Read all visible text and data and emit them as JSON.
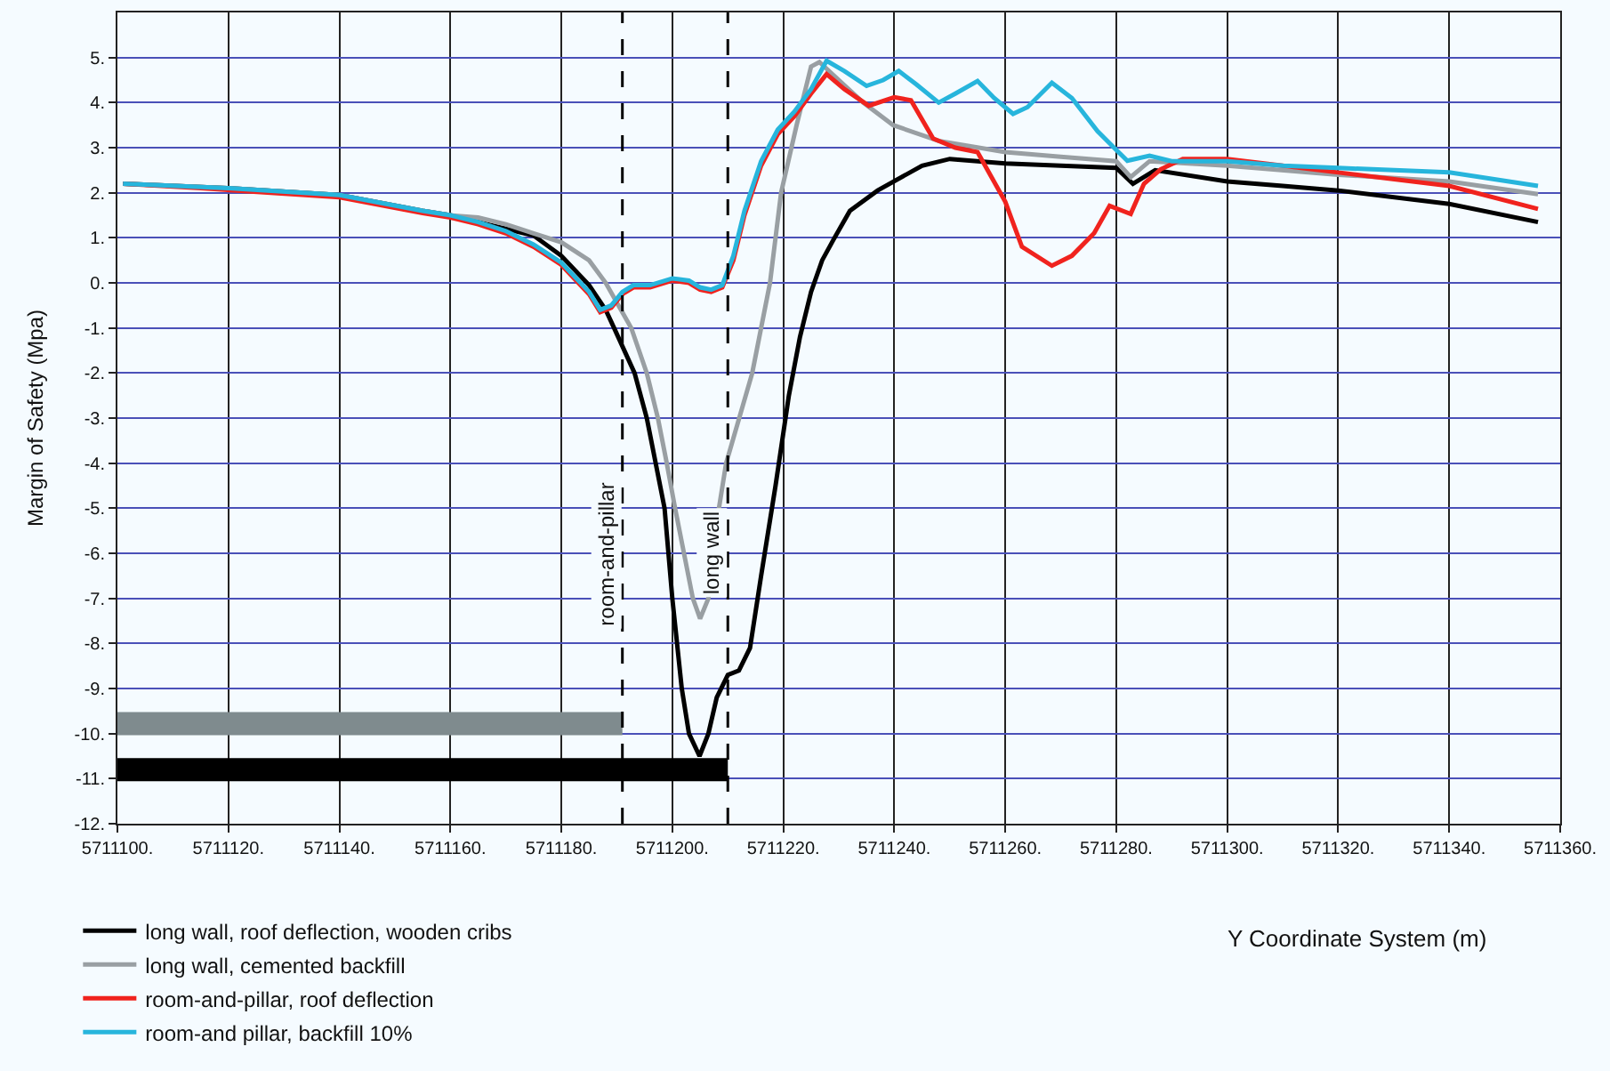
{
  "chart_data": {
    "type": "line",
    "xlabel": "Y Coordinate System (m)",
    "ylabel": "Margin of Safety (Mpa)",
    "xlim": [
      5711100,
      5711360
    ],
    "ylim": [
      -12,
      6
    ],
    "xticks": [
      {
        "value": 5711100,
        "label": "5711100."
      },
      {
        "value": 5711120,
        "label": "5711120."
      },
      {
        "value": 5711140,
        "label": "5711140."
      },
      {
        "value": 5711160,
        "label": "5711160."
      },
      {
        "value": 5711180,
        "label": "5711180."
      },
      {
        "value": 5711200,
        "label": "5711200."
      },
      {
        "value": 5711220,
        "label": "5711220."
      },
      {
        "value": 5711240,
        "label": "5711240."
      },
      {
        "value": 5711260,
        "label": "5711260."
      },
      {
        "value": 5711280,
        "label": "5711280."
      },
      {
        "value": 5711300,
        "label": "5711300."
      },
      {
        "value": 5711320,
        "label": "5711320."
      },
      {
        "value": 5711340,
        "label": "5711340."
      },
      {
        "value": 5711360,
        "label": "5711360."
      }
    ],
    "yticks": [
      {
        "value": 5,
        "label": "5."
      },
      {
        "value": 4,
        "label": "4."
      },
      {
        "value": 3,
        "label": "3."
      },
      {
        "value": 2,
        "label": "2."
      },
      {
        "value": 1,
        "label": "1."
      },
      {
        "value": 0,
        "label": "0."
      },
      {
        "value": -1,
        "label": "-1."
      },
      {
        "value": -2,
        "label": "-2."
      },
      {
        "value": -3,
        "label": "-3."
      },
      {
        "value": -4,
        "label": "-4."
      },
      {
        "value": -5,
        "label": "-5."
      },
      {
        "value": -6,
        "label": "-6."
      },
      {
        "value": -7,
        "label": "-7."
      },
      {
        "value": -8,
        "label": "-8."
      },
      {
        "value": -9,
        "label": "-9."
      },
      {
        "value": -10,
        "label": "-10."
      },
      {
        "value": -11,
        "label": "-11."
      },
      {
        "value": -12,
        "label": "-12."
      }
    ],
    "grid": true,
    "legend": "bottom left",
    "marker": "none",
    "line_style": "solid",
    "ref_lines": [
      {
        "axis": "x",
        "value": 5711191,
        "label": "room-and-pillar",
        "color": "#000000",
        "line_style": "dashed"
      },
      {
        "axis": "x",
        "value": 5711210,
        "label": "long wall",
        "color": "#000000",
        "line_style": "dashed"
      }
    ],
    "series": [
      {
        "name": "long wall, roof deflection, wooden cribs",
        "color": "#000000",
        "x": [
          5711101,
          5711120,
          5711140,
          5711155,
          5711160,
          5711165,
          5711170,
          5711175,
          5711180,
          5711185,
          5711188,
          5711189.5,
          5711193.2,
          5711195.4,
          5711197,
          5711198.6,
          5711200,
          5711201.7,
          5711203,
          5711204.9,
          5711206.5,
          5711208,
          5711210,
          5711212,
          5711214,
          5711216,
          5711218.6,
          5711221,
          5711223,
          5711225,
          5711227,
          5711229,
          5711232,
          5711237,
          5711245,
          5711250,
          5711260,
          5711270,
          5711280,
          5711283,
          5711287,
          5711300,
          5711310,
          5711320,
          5711340,
          5711356
        ],
        "values": [
          2.2,
          2.1,
          1.95,
          1.6,
          1.5,
          1.35,
          1.2,
          1.05,
          0.6,
          -0.05,
          -0.6,
          -1,
          -2,
          -3,
          -4,
          -5,
          -7,
          -9,
          -10,
          -10.5,
          -10,
          -9.2,
          -8.7,
          -8.6,
          -8.1,
          -6.5,
          -4.5,
          -2.5,
          -1.2,
          -0.2,
          0.5,
          0.95,
          1.6,
          2.05,
          2.6,
          2.75,
          2.65,
          2.6,
          2.55,
          2.2,
          2.5,
          2.25,
          2.15,
          2.05,
          1.75,
          1.35
        ]
      },
      {
        "name": "long wall, cemented backfill",
        "color": "#999fa3",
        "x": [
          5711101,
          5711120,
          5711140,
          5711155,
          5711160,
          5711165,
          5711170,
          5711175,
          5711180,
          5711185,
          5711188,
          5711192.6,
          5711195.4,
          5711197.4,
          5711199,
          5711200.5,
          5711203.7,
          5711205,
          5711206.5,
          5711208.4,
          5711209.7,
          5711214.4,
          5711217.6,
          5711219.6,
          5711222.4,
          5711225,
          5711226.5,
          5711230,
          5711234.4,
          5711239.8,
          5711248,
          5711260,
          5711270,
          5711280,
          5711282.6,
          5711286,
          5711300,
          5711320,
          5711340,
          5711356
        ],
        "values": [
          2.2,
          2.1,
          1.95,
          1.6,
          1.5,
          1.45,
          1.3,
          1.1,
          0.9,
          0.5,
          0,
          -1,
          -2,
          -3,
          -4,
          -5,
          -7,
          -7.45,
          -7,
          -5,
          -4,
          -2,
          0,
          2,
          3.5,
          4.8,
          4.9,
          4.5,
          4,
          3.5,
          3.15,
          2.9,
          2.8,
          2.7,
          2.35,
          2.7,
          2.6,
          2.4,
          2.25,
          1.97
        ]
      },
      {
        "name": "room-and-pillar, roof deflection",
        "color": "#f0231e",
        "x": [
          5711101,
          5711115,
          5711140,
          5711155,
          5711160,
          5711165,
          5711170,
          5711175,
          5711180,
          5711185,
          5711187,
          5711189,
          5711191,
          5711193,
          5711196,
          5711200,
          5711203,
          5711205,
          5711207,
          5711209,
          5711211,
          5711213,
          5711216,
          5711219,
          5711222,
          5711225,
          5711227.8,
          5711231,
          5711235.4,
          5711240,
          5711243,
          5711247,
          5711251,
          5711255,
          5711260,
          5711263,
          5711268.4,
          5711272,
          5711276,
          5711278.8,
          5711282.6,
          5711285,
          5711288,
          5711292,
          5711300,
          5711310,
          5711320,
          5711340,
          5711356
        ],
        "values": [
          2.2,
          2.1,
          1.9,
          1.55,
          1.45,
          1.3,
          1.1,
          0.8,
          0.4,
          -0.25,
          -0.65,
          -0.55,
          -0.25,
          -0.1,
          -0.1,
          0.05,
          0,
          -0.15,
          -0.2,
          -0.1,
          0.5,
          1.5,
          2.6,
          3.3,
          3.7,
          4.2,
          4.63,
          4.3,
          3.93,
          4.12,
          4.05,
          3.2,
          3.0,
          2.9,
          1.8,
          0.8,
          0.38,
          0.6,
          1.1,
          1.71,
          1.53,
          2.2,
          2.52,
          2.75,
          2.75,
          2.6,
          2.45,
          2.15,
          1.64
        ]
      },
      {
        "name": "room-and pillar, backfill 10%",
        "color": "#27b5dc",
        "x": [
          5711101,
          5711120,
          5711140,
          5711155,
          5711160,
          5711165,
          5711170,
          5711175,
          5711180,
          5711185,
          5711187,
          5711189,
          5711191,
          5711193,
          5711196,
          5711200,
          5711203,
          5711205,
          5711207,
          5711209,
          5711211,
          5711213,
          5711216,
          5711219,
          5711222,
          5711225,
          5711227.8,
          5711231,
          5711235,
          5711238,
          5711240.8,
          5711244,
          5711248,
          5711251,
          5711255,
          5711258,
          5711261.4,
          5711264,
          5711268.4,
          5711272,
          5711276.6,
          5711280,
          5711282,
          5711286,
          5711290,
          5711300,
          5711310,
          5711320,
          5711340,
          5711356
        ],
        "values": [
          2.2,
          2.1,
          1.95,
          1.6,
          1.5,
          1.35,
          1.15,
          0.85,
          0.45,
          -0.2,
          -0.6,
          -0.5,
          -0.2,
          -0.05,
          -0.05,
          0.1,
          0.05,
          -0.1,
          -0.15,
          -0.05,
          0.6,
          1.6,
          2.7,
          3.4,
          3.8,
          4.3,
          4.93,
          4.7,
          4.37,
          4.5,
          4.7,
          4.4,
          4,
          4.2,
          4.48,
          4.1,
          3.75,
          3.9,
          4.44,
          4.1,
          3.37,
          2.95,
          2.71,
          2.82,
          2.7,
          2.7,
          2.6,
          2.55,
          2.45,
          2.15
        ]
      },
      {
        "type": "line",
        "color": "#7f8b8e",
        "x": [
          5711100,
          5711191
        ],
        "values": [
          -9.78,
          -9.78
        ]
      },
      {
        "type": "line",
        "color": "#000000",
        "x": [
          5711100,
          5711210
        ],
        "values": [
          -10.8,
          -10.8
        ]
      }
    ]
  }
}
